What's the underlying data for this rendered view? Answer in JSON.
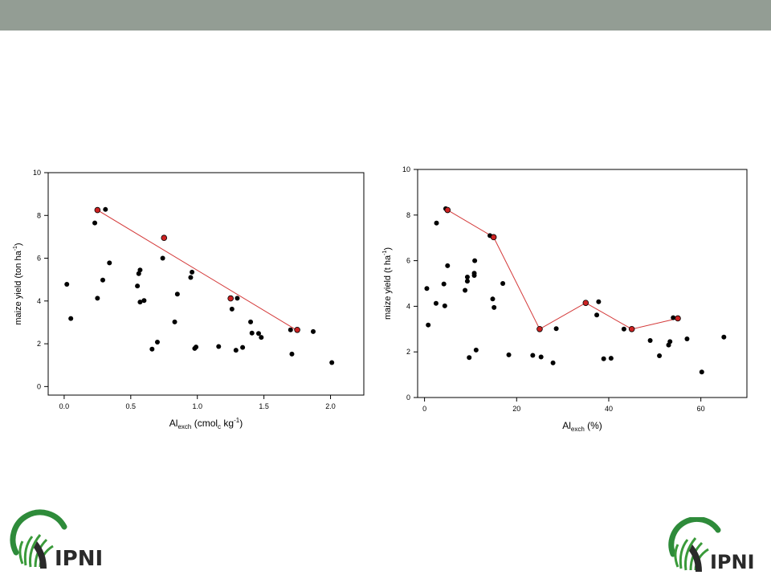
{
  "brand": {
    "name": "IPNI",
    "colors": {
      "header_bar": "#939d94",
      "logo_green": "#3a9a3a",
      "logo_dark": "#2a2a2a",
      "logo_arc": "#2e8b3a"
    }
  },
  "chart_data": [
    {
      "type": "scatter",
      "title": "",
      "xlabel": {
        "main": "Al",
        "sub": "exch",
        "rest": " (cmol",
        "rest_sub": "c",
        "rest2": " kg",
        "sup": "-1",
        "end": ")"
      },
      "ylabel": {
        "main": "maize yield (ton ha",
        "sup": "-1",
        "end": ")"
      },
      "xlim": [
        -0.12,
        2.25
      ],
      "ylim": [
        -0.4,
        10
      ],
      "xticks": [
        "0.0",
        "0.5",
        "1.0",
        "1.5",
        "2.0"
      ],
      "xtick_values": [
        0,
        0.5,
        1.0,
        1.5,
        2.0
      ],
      "yticks": [
        "0",
        "2",
        "4",
        "6",
        "8",
        "10"
      ],
      "ytick_values": [
        0,
        2,
        4,
        6,
        8,
        10
      ],
      "grid": false,
      "colors": {
        "points": "#000000",
        "boundary_points": "#cc2222",
        "boundary_line": "#d43a3a"
      },
      "points": [
        [
          0.02,
          4.78
        ],
        [
          0.05,
          3.18
        ],
        [
          0.23,
          7.65
        ],
        [
          0.25,
          4.13
        ],
        [
          0.29,
          4.98
        ],
        [
          0.31,
          8.28
        ],
        [
          0.34,
          5.78
        ],
        [
          0.55,
          4.7
        ],
        [
          0.56,
          5.28
        ],
        [
          0.57,
          5.45
        ],
        [
          0.57,
          3.95
        ],
        [
          0.6,
          4.02
        ],
        [
          0.66,
          1.75
        ],
        [
          0.7,
          2.08
        ],
        [
          0.74,
          6.0
        ],
        [
          0.83,
          3.02
        ],
        [
          0.85,
          4.32
        ],
        [
          0.95,
          5.1
        ],
        [
          0.96,
          5.35
        ],
        [
          0.98,
          1.78
        ],
        [
          0.99,
          1.85
        ],
        [
          1.16,
          1.87
        ],
        [
          1.26,
          3.62
        ],
        [
          1.29,
          1.7
        ],
        [
          1.3,
          4.13
        ],
        [
          1.34,
          1.83
        ],
        [
          1.4,
          3.02
        ],
        [
          1.41,
          2.5
        ],
        [
          1.46,
          2.48
        ],
        [
          1.48,
          2.3
        ],
        [
          1.7,
          2.65
        ],
        [
          1.71,
          1.52
        ],
        [
          1.87,
          2.57
        ],
        [
          2.01,
          1.12
        ]
      ],
      "boundary_points": [
        [
          0.25,
          8.25
        ],
        [
          0.75,
          6.95
        ],
        [
          1.25,
          4.12
        ],
        [
          1.75,
          2.65
        ]
      ],
      "boundary_line": [
        [
          0.25,
          8.25
        ],
        [
          1.75,
          2.62
        ]
      ]
    },
    {
      "type": "scatter",
      "title": "",
      "xlabel": {
        "main": "Al",
        "sub": "exch",
        "rest": " (%)"
      },
      "ylabel": {
        "main": "maize yield (t ha",
        "sup": "-1",
        "end": ")"
      },
      "xlim": [
        -1.5,
        70
      ],
      "ylim": [
        0,
        10
      ],
      "xticks": [
        "0",
        "20",
        "40",
        "60"
      ],
      "xtick_values": [
        0,
        20,
        40,
        60
      ],
      "yticks": [
        "0",
        "2",
        "4",
        "6",
        "8",
        "10"
      ],
      "ytick_values": [
        0,
        2,
        4,
        6,
        8,
        10
      ],
      "grid": false,
      "colors": {
        "points": "#000000",
        "boundary_points": "#cc2222",
        "boundary_line": "#d43a3a"
      },
      "points": [
        [
          0.5,
          4.78
        ],
        [
          0.8,
          3.18
        ],
        [
          2.5,
          4.13
        ],
        [
          2.6,
          7.65
        ],
        [
          4.2,
          4.98
        ],
        [
          4.4,
          4.02
        ],
        [
          4.6,
          8.28
        ],
        [
          5.0,
          5.78
        ],
        [
          8.8,
          4.7
        ],
        [
          9.3,
          5.28
        ],
        [
          9.3,
          5.1
        ],
        [
          9.7,
          1.75
        ],
        [
          10.8,
          5.35
        ],
        [
          10.8,
          5.45
        ],
        [
          10.9,
          6.0
        ],
        [
          11.2,
          2.08
        ],
        [
          14.2,
          7.1
        ],
        [
          14.8,
          4.32
        ],
        [
          15.1,
          3.95
        ],
        [
          17.0,
          5.0
        ],
        [
          18.3,
          1.87
        ],
        [
          23.5,
          1.85
        ],
        [
          25.3,
          1.78
        ],
        [
          27.9,
          1.52
        ],
        [
          28.6,
          3.02
        ],
        [
          37.4,
          3.62
        ],
        [
          37.8,
          4.2
        ],
        [
          38.9,
          1.7
        ],
        [
          40.5,
          1.72
        ],
        [
          43.3,
          3.0
        ],
        [
          49.0,
          2.5
        ],
        [
          51.0,
          1.83
        ],
        [
          53.0,
          2.3
        ],
        [
          53.3,
          2.45
        ],
        [
          54.0,
          3.5
        ],
        [
          57.0,
          2.57
        ],
        [
          60.2,
          1.12
        ],
        [
          65.0,
          2.65
        ]
      ],
      "boundary_points": [
        [
          5,
          8.22
        ],
        [
          15,
          7.03
        ],
        [
          25,
          3.0
        ],
        [
          35,
          4.15
        ],
        [
          45,
          3.0
        ],
        [
          55,
          3.47
        ]
      ],
      "boundary_line": [
        [
          5,
          8.22
        ],
        [
          15,
          7.03
        ],
        [
          25,
          3.0
        ],
        [
          35,
          4.15
        ],
        [
          45,
          3.0
        ],
        [
          55,
          3.47
        ]
      ]
    }
  ]
}
